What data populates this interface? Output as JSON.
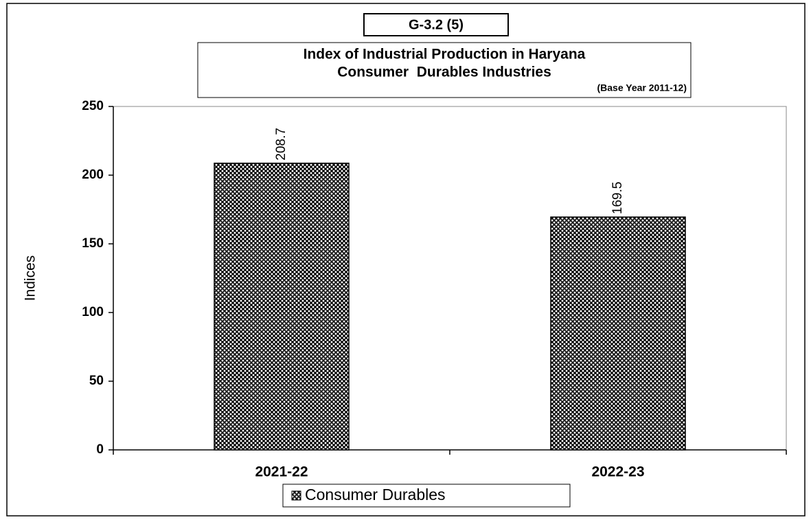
{
  "chart_data": {
    "type": "bar",
    "figure_label": "G-3.2 (5)",
    "title": [
      "Index of Industrial Production in Haryana",
      "Consumer  Durables Industries"
    ],
    "note": "(Base Year 2011-12)",
    "ylabel": "Indices",
    "categories": [
      "2021-22",
      "2022-23"
    ],
    "series": [
      {
        "name": "Consumer Durables",
        "color": "#000000",
        "values": [
          208.7,
          169.5
        ]
      }
    ],
    "ylim": [
      0,
      250
    ],
    "yticks": [
      0,
      50,
      100,
      150,
      200,
      250
    ],
    "grid": false,
    "legend": "bottom"
  }
}
